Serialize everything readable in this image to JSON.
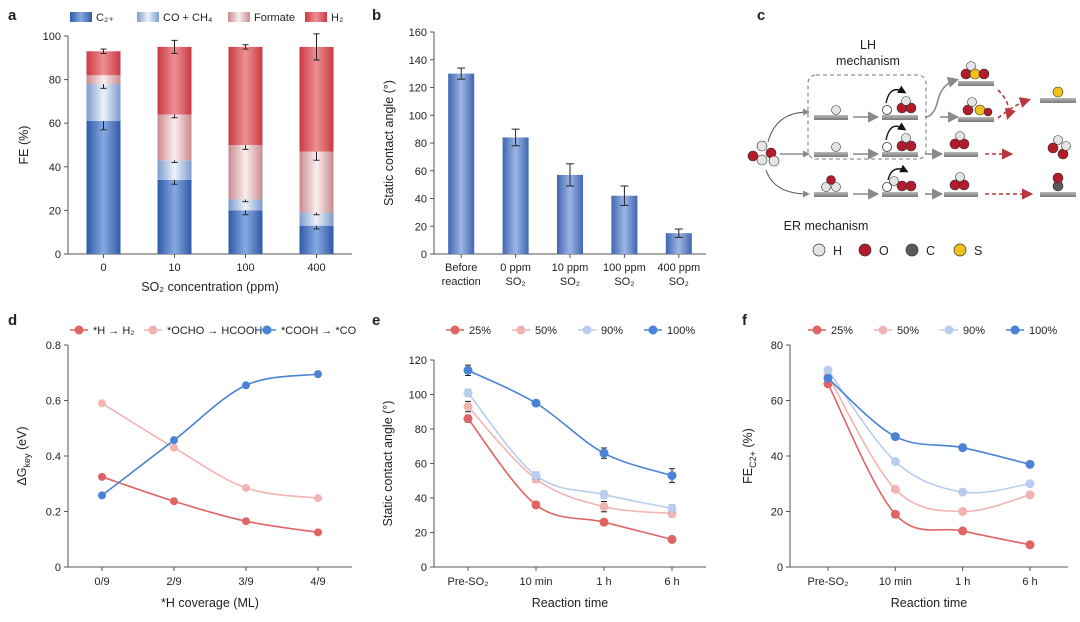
{
  "colors": {
    "blue": "#4a7fd0",
    "h2": "#d94f55",
    "r25": "#e06464",
    "r50": "#f4b3b3",
    "r90": "#b8cdef",
    "r100": "#4a82d6",
    "arrow_grey": "#8a8a8a",
    "arrow_red": "#b8373f",
    "atom_o": "#b31b2a",
    "atom_c": "#5a5a5a",
    "atom_s": "#f0c219",
    "atom_h": "#e4e4e4"
  },
  "chart_data": [
    {
      "id": "a",
      "type": "bar",
      "stacked": true,
      "panel_label": "a",
      "categories": [
        "0",
        "10",
        "100",
        "400"
      ],
      "xlabel": "SO₂ concentration (ppm)",
      "ylabel": "FE (%)",
      "ylim": [
        0,
        100
      ],
      "yticks": [
        0,
        20,
        40,
        60,
        80,
        100
      ],
      "series": [
        {
          "name": "C₂₊",
          "values": [
            61,
            34,
            20,
            13
          ],
          "errors": [
            4,
            2,
            2,
            1.5
          ],
          "color": "#3f6ec3"
        },
        {
          "name": "CO + CH₄",
          "values": [
            17,
            9,
            5,
            6
          ],
          "errors": [
            2,
            1,
            1,
            1
          ],
          "color": "#b8c9e4"
        },
        {
          "name": "Formate",
          "values": [
            4,
            21,
            25,
            28
          ],
          "errors": [
            0,
            1.5,
            2,
            4
          ],
          "color": "#e3b0b4"
        },
        {
          "name": "H₂",
          "values": [
            11,
            31,
            45,
            48
          ],
          "errors": [
            1,
            3,
            1,
            6
          ],
          "color": "#d94f55"
        }
      ]
    },
    {
      "id": "b",
      "type": "bar",
      "panel_label": "b",
      "categories": [
        [
          "Before",
          "reaction"
        ],
        [
          "0 ppm",
          "SO₂"
        ],
        [
          "10 ppm",
          "SO₂"
        ],
        [
          "100 ppm",
          "SO₂"
        ],
        [
          "400 ppm",
          "SO₂"
        ]
      ],
      "values": [
        130,
        84,
        57,
        42,
        15
      ],
      "errors": [
        4,
        6,
        8,
        7,
        3
      ],
      "ylabel": "Static contact angle (°)",
      "ylim": [
        0,
        160
      ],
      "yticks": [
        0,
        20,
        40,
        60,
        80,
        100,
        120,
        140,
        160
      ]
    },
    {
      "id": "d",
      "type": "line",
      "panel_label": "d",
      "categories": [
        "0/9",
        "2/9",
        "3/9",
        "4/9"
      ],
      "xlabel": "*H coverage (ML)",
      "ylabel": "ΔG",
      "ylabel_sub": "key",
      "ylabel_tail": " (eV)",
      "ylim": [
        0,
        0.8
      ],
      "yticks": [
        0,
        0.2,
        0.4,
        0.6,
        0.8
      ],
      "series": [
        {
          "name": "*H → H₂",
          "values": [
            0.325,
            0.237,
            0.165,
            0.125
          ],
          "color": "#e06464"
        },
        {
          "name": "*OCHO → HCOOH",
          "values": [
            0.59,
            0.43,
            0.285,
            0.248
          ],
          "color": "#f4b3b3"
        },
        {
          "name": "*COOH → *CO",
          "values": [
            0.258,
            0.457,
            0.655,
            0.695
          ],
          "color": "#4a82d6"
        }
      ]
    },
    {
      "id": "e",
      "type": "line",
      "panel_label": "e",
      "categories": [
        "Pre-SO₂",
        "10 min",
        "1 h",
        "6 h"
      ],
      "xlabel": "Reaction time",
      "ylabel": "Static contact angle (°)",
      "ylim": [
        0,
        120
      ],
      "yticks": [
        0,
        20,
        40,
        60,
        80,
        100,
        120
      ],
      "series": [
        {
          "name": "25%",
          "values": [
            86,
            36,
            26,
            16
          ],
          "errors": [
            2,
            1.5,
            1.5,
            1.5
          ],
          "color": "#e06464"
        },
        {
          "name": "50%",
          "values": [
            93,
            51,
            35,
            31
          ],
          "errors": [
            3,
            2,
            3,
            2
          ],
          "color": "#f4b3b3"
        },
        {
          "name": "90%",
          "values": [
            101,
            53,
            42,
            34
          ],
          "errors": [
            2,
            2,
            2,
            2
          ],
          "color": "#b8cdef"
        },
        {
          "name": "100%",
          "values": [
            114,
            95,
            66,
            53
          ],
          "errors": [
            3,
            1.5,
            3,
            4
          ],
          "color": "#4a82d6"
        }
      ]
    },
    {
      "id": "f",
      "type": "line",
      "panel_label": "f",
      "categories": [
        "Pre-SO₂",
        "10 min",
        "1 h",
        "6 h"
      ],
      "xlabel": "Reaction time",
      "ylabel": "FE",
      "ylabel_sub": "C2+",
      "ylabel_tail": " (%)",
      "ylim": [
        0,
        80
      ],
      "yticks": [
        0,
        20,
        40,
        60,
        80
      ],
      "series": [
        {
          "name": "25%",
          "values": [
            66,
            19,
            13,
            8
          ],
          "color": "#e06464"
        },
        {
          "name": "50%",
          "values": [
            69,
            28,
            20,
            26
          ],
          "color": "#f4b3b3"
        },
        {
          "name": "90%",
          "values": [
            71,
            38,
            27,
            30
          ],
          "color": "#b8cdef"
        },
        {
          "name": "100%",
          "values": [
            68,
            47,
            43,
            37
          ],
          "color": "#4a82d6"
        }
      ]
    }
  ],
  "panel_c": {
    "label": "c",
    "lh_title_1": "LH",
    "lh_title_2": "mechanism",
    "er_title": "ER mechanism",
    "legend": [
      {
        "name": "H",
        "color": "#e4e4e4"
      },
      {
        "name": "O",
        "color": "#b31b2a"
      },
      {
        "name": "C",
        "color": "#5a5a5a"
      },
      {
        "name": "S",
        "color": "#f0c219"
      }
    ]
  }
}
